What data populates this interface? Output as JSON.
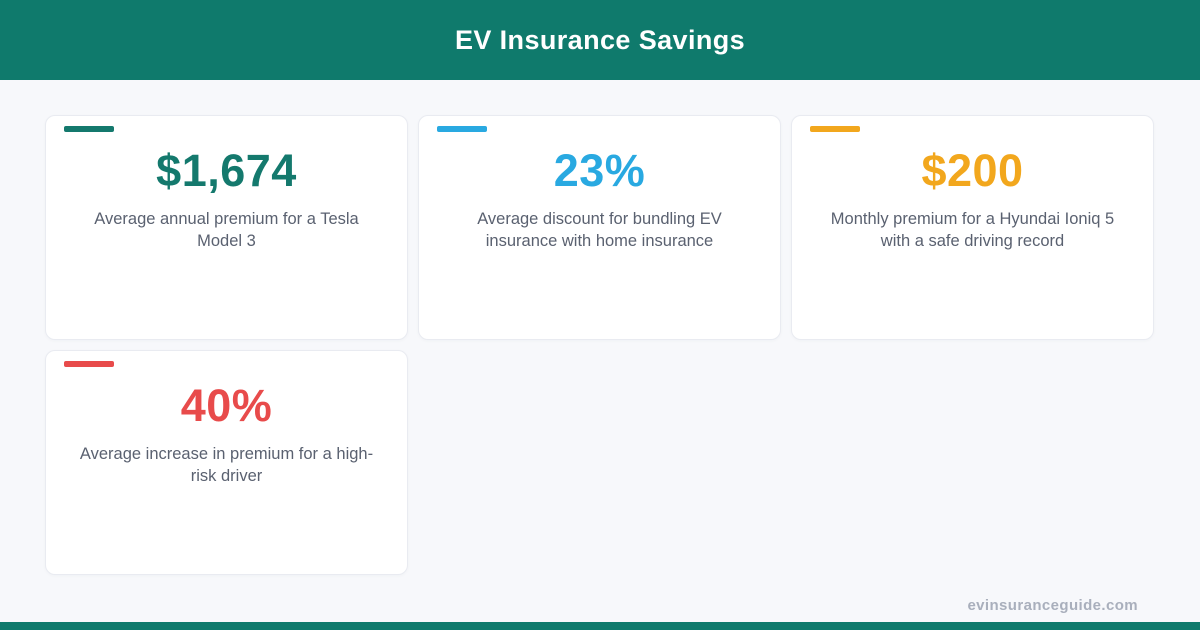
{
  "header": {
    "title": "EV Insurance Savings",
    "bg_color": "#0f7a6c"
  },
  "cards": [
    {
      "value": "$1,674",
      "label": "Average annual premium for a Tesla Model 3",
      "color": "#14796d"
    },
    {
      "value": "23%",
      "label": "Average discount for bundling EV insurance with home insurance",
      "color": "#29a9e1"
    },
    {
      "value": "$200",
      "label": "Monthly premium for a Hyundai Ioniq 5 with a safe driving record",
      "color": "#f2a71d"
    },
    {
      "value": "40%",
      "label": "Average increase in premium for a high-risk driver",
      "color": "#e84b4b"
    }
  ],
  "footer": {
    "website": "evinsuranceguide.com"
  },
  "colors": {
    "page_background": "#f7f8fb",
    "card_background": "#ffffff",
    "card_border": "#e9ebf1",
    "label_text": "#5a6170",
    "footer_text": "#a9afbc",
    "accent_teal": "#0f7a6c"
  }
}
